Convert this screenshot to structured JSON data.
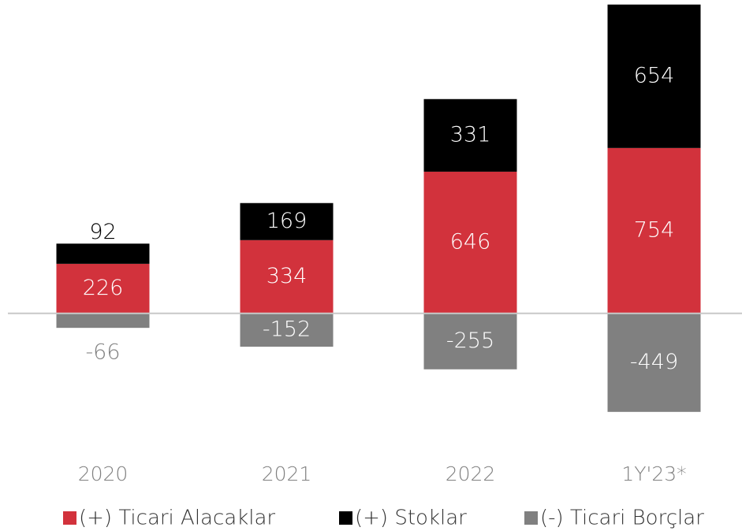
{
  "chart_data": {
    "type": "stacked_bar",
    "categories": [
      "2020",
      "2021",
      "2022",
      "1Y'23*"
    ],
    "series": [
      {
        "name": "(+) Ticari Alacaklar",
        "color": "#d2323c",
        "values": [
          226,
          334,
          646,
          754
        ]
      },
      {
        "name": "(+) Stoklar",
        "color": "#000000",
        "values": [
          92,
          169,
          331,
          654
        ]
      },
      {
        "name": "(-) Ticari Borçlar",
        "color": "#808080",
        "values": [
          -66,
          -152,
          -255,
          -449
        ]
      }
    ],
    "ylim": [
      -500,
      1400
    ]
  }
}
